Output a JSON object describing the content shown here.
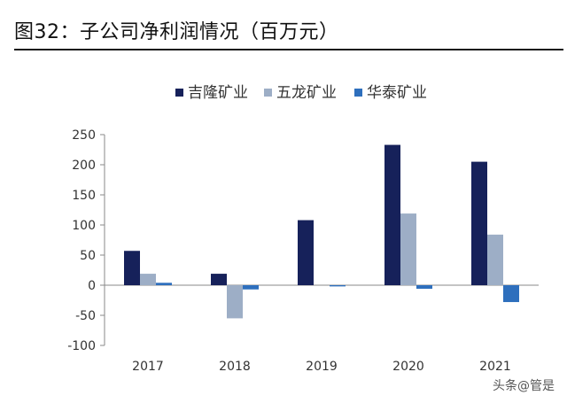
{
  "figure": {
    "title": "图32：子公司净利润情况（百万元）",
    "watermark": "头条@管是"
  },
  "chart_data": {
    "type": "bar",
    "title": "",
    "xlabel": "",
    "ylabel": "",
    "categories": [
      "2017",
      "2018",
      "2019",
      "2020",
      "2021"
    ],
    "series": [
      {
        "name": "吉隆矿业",
        "color": "#16215a",
        "values": [
          57,
          19,
          108,
          233,
          205
        ]
      },
      {
        "name": "五龙矿业",
        "color": "#9daec6",
        "values": [
          19,
          -55,
          0,
          119,
          84
        ]
      },
      {
        "name": "华泰矿业",
        "color": "#2e6fbd",
        "values": [
          4,
          -7,
          -2,
          -6,
          -28
        ]
      }
    ],
    "ylim": [
      -100,
      250
    ],
    "yticks": [
      -100,
      -50,
      0,
      50,
      100,
      150,
      200,
      250
    ],
    "ytick_labels": [
      "-100",
      "-50",
      "0",
      "50",
      "100",
      "150",
      "200",
      "250"
    ],
    "legend_position": "top",
    "grid": false
  }
}
